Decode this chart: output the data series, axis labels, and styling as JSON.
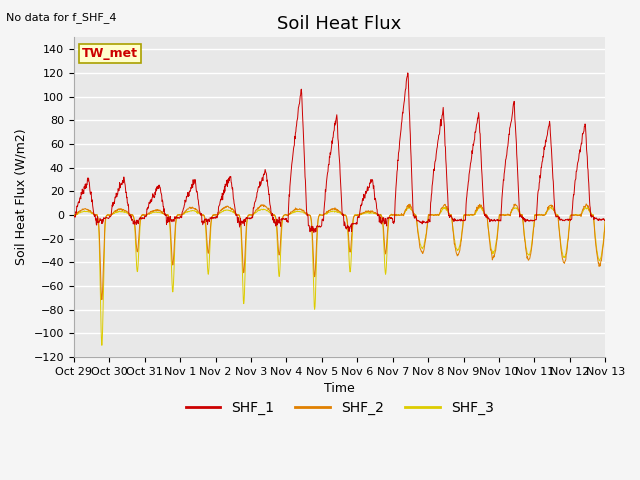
{
  "title": "Soil Heat Flux",
  "ylabel": "Soil Heat Flux (W/m2)",
  "xlabel": "Time",
  "annotation": "No data for f_SHF_4",
  "legend_label": "TW_met",
  "series_labels": [
    "SHF_1",
    "SHF_2",
    "SHF_3"
  ],
  "series_colors": [
    "#cc0000",
    "#e08000",
    "#ddcc00"
  ],
  "ylim": [
    -120,
    150
  ],
  "yticks": [
    -120,
    -100,
    -80,
    -60,
    -40,
    -20,
    0,
    20,
    40,
    60,
    80,
    100,
    120,
    140
  ],
  "xtick_labels": [
    "Oct 29",
    "Oct 30",
    "Oct 31",
    "Nov 1",
    "Nov 2",
    "Nov 3",
    "Nov 4",
    "Nov 5",
    "Nov 6",
    "Nov 7",
    "Nov 8",
    "Nov 9",
    "Nov 10",
    "Nov 11",
    "Nov 12",
    "Nov 13"
  ],
  "bg_color": "#e8e8e8",
  "grid_color": "#ffffff",
  "title_fontsize": 13,
  "label_fontsize": 9,
  "tick_fontsize": 8,
  "fig_width": 6.4,
  "fig_height": 4.8,
  "fig_dpi": 100
}
